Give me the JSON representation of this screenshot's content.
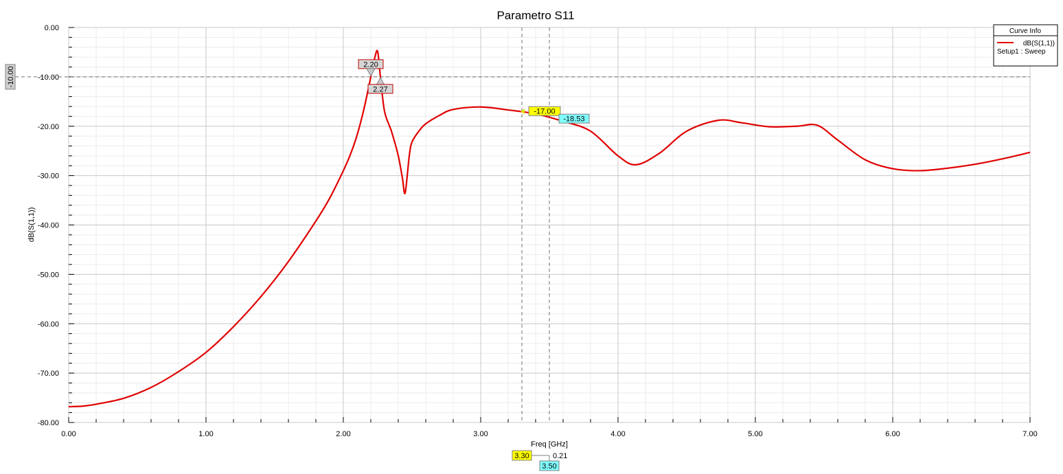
{
  "chart_data": {
    "type": "line",
    "title": "Parametro S11",
    "xlabel": "Freq [GHz]",
    "ylabel": "dB(S(1,1))",
    "xlim": [
      0,
      7
    ],
    "ylim": [
      -80,
      0
    ],
    "x_ticks": [
      "0.00",
      "1.00",
      "2.00",
      "3.00",
      "4.00",
      "5.00",
      "6.00",
      "7.00"
    ],
    "y_ticks": [
      "0.00",
      "-10.00",
      "-20.00",
      "-30.00",
      "-40.00",
      "-50.00",
      "-60.00",
      "-70.00",
      "-80.00"
    ],
    "grid": true,
    "legend": {
      "title": "Curve Info",
      "placement": "top-right",
      "entries": [
        {
          "name": "dB(S(1,1))",
          "sub": "Setup1 : Sweep",
          "color": "#e00000"
        }
      ]
    },
    "series": [
      {
        "name": "dB(S(1,1))",
        "color": "#e00000",
        "x": [
          0.0,
          0.1,
          0.2,
          0.4,
          0.6,
          0.8,
          1.0,
          1.2,
          1.4,
          1.6,
          1.8,
          1.9,
          2.0,
          2.05,
          2.1,
          2.15,
          2.2,
          2.23,
          2.25,
          2.27,
          2.3,
          2.35,
          2.4,
          2.43,
          2.45,
          2.48,
          2.5,
          2.55,
          2.6,
          2.7,
          2.8,
          3.0,
          3.2,
          3.4,
          3.6,
          3.8,
          4.0,
          4.13,
          4.3,
          4.5,
          4.73,
          4.9,
          5.1,
          5.3,
          5.45,
          5.6,
          5.8,
          6.0,
          6.2,
          6.4,
          6.6,
          6.8,
          7.0
        ],
        "y": [
          -76.8,
          -76.7,
          -76.3,
          -75.1,
          -72.9,
          -69.7,
          -65.8,
          -60.6,
          -54.5,
          -47.4,
          -39.2,
          -34.6,
          -29.0,
          -25.8,
          -21.8,
          -16.5,
          -10.0,
          -6.0,
          -4.9,
          -10.0,
          -17.0,
          -21.0,
          -26.0,
          -30.5,
          -33.5,
          -26.0,
          -23.2,
          -21.0,
          -19.5,
          -17.8,
          -16.6,
          -16.1,
          -16.7,
          -17.5,
          -19.0,
          -21.0,
          -26.0,
          -27.8,
          -25.5,
          -21.0,
          -18.8,
          -19.3,
          -20.1,
          -20.0,
          -19.8,
          -22.8,
          -26.8,
          -28.6,
          -29.0,
          -28.5,
          -27.7,
          -26.6,
          -25.3
        ]
      }
    ],
    "markers": [
      {
        "label": "2.20",
        "x": 2.2,
        "y": -10.0
      },
      {
        "label": "2.27",
        "x": 2.27,
        "y": -10.0
      }
    ],
    "ref_lines": {
      "y_value": -10.0,
      "y_label": "-10.00",
      "x_values": [
        3.3,
        3.5
      ]
    },
    "crosshair_readouts": [
      {
        "x_label": "3.30",
        "y_label": "-17.00",
        "color": "#ffff00",
        "x": 3.3,
        "y": -17.0
      },
      {
        "x_label": "3.50",
        "y_label": "-18.53",
        "color": "#80ffff",
        "x": 3.5,
        "y": -18.53
      }
    ],
    "delta_label": "0.21"
  }
}
